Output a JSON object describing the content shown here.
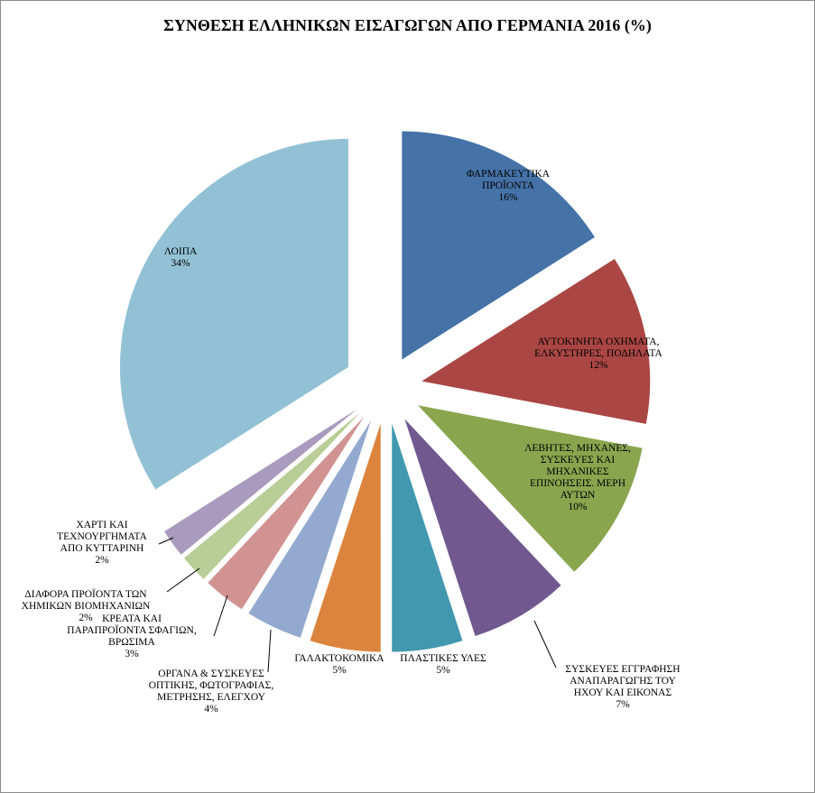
{
  "chart_data": {
    "type": "pie",
    "title": "ΣΥΝΘΕΣΗ ΕΛΛΗΝΙΚΩΝ ΕΙΣΑΓΩΓΩΝ ΑΠΟ ΓΕΡΜΑΝΙΑ 2016 (%)",
    "exploded": true,
    "start_angle_deg": 0,
    "direction": "clockwise",
    "slices": [
      {
        "label": [
          "ΦΑΡΜΑΚΕΥΤΙΚΑ",
          "ΠΡΟΪΟΝΤΑ"
        ],
        "pct_label": "16%",
        "value": 16,
        "color": "#4572A7"
      },
      {
        "label": [
          "ΑΥΤΟΚΙΝΗΤΑ ΟΧΗΜΑΤΑ,",
          "ΕΛΚΥΣΤΗΡΕΣ, ΠΟΔΗΛΑΤΑ"
        ],
        "pct_label": "12%",
        "value": 12,
        "color": "#AA4643"
      },
      {
        "label": [
          "ΛΕΒΗΤΕΣ, ΜΗΧΑΝΕΣ,",
          "ΣΥΣΚΕΥΕΣ ΚΑΙ",
          "ΜΗΧΑΝΙΚΕΣ",
          "ΕΠΙΝΟΗΣΕΙΣ. ΜΕΡΗ",
          "ΑΥΤΩΝ"
        ],
        "pct_label": "10%",
        "value": 10,
        "color": "#89A54E"
      },
      {
        "label": [
          "ΣΥΣΚΕΥΕΣ ΕΓΓΡΑΦΗΣΗ",
          "ΑΝΑΠΑΡΑΓΩΓΗΣ ΤΟΥ",
          "ΗΧΟΥ ΚΑΙ ΕΙΚΟΝΑΣ"
        ],
        "pct_label": "7%",
        "value": 7,
        "color": "#71588F"
      },
      {
        "label": [
          "ΠΛΑΣΤΙΚΕΣ ΥΛΕΣ"
        ],
        "pct_label": "5%",
        "value": 5,
        "color": "#4198AF"
      },
      {
        "label": [
          "ΓΑΛΑΚΤΟΚΟΜΙΚΑ"
        ],
        "pct_label": "5%",
        "value": 5,
        "color": "#DB843D"
      },
      {
        "label": [
          "ΟΡΓΑΝΑ & ΣΥΣΚΕΥΕΣ",
          "ΟΠΤΙΚΗΣ, ΦΩΤΟΓΡΑΦΙΑΣ,",
          "ΜΕΤΡΗΣΗΣ, ΕΛΕΓΧΟΥ"
        ],
        "pct_label": "4%",
        "value": 4,
        "color": "#93A9CF"
      },
      {
        "label": [
          "ΚΡΕΑΤΑ ΚΑΙ",
          "ΠΑΡΑΠΡΟΪΟΝΤΑ ΣΦΑΓΙΩΝ,",
          "ΒΡΩΣΙΜΑ"
        ],
        "pct_label": "3%",
        "value": 3,
        "color": "#D19392"
      },
      {
        "label": [
          "ΔΙΑΦΟΡΑ ΠΡΟΪΟΝΤΑ ΤΩΝ",
          "ΧΗΜΙΚΩΝ ΒΙΟΜΗΧΑΝΙΩΝ"
        ],
        "pct_label": "2%",
        "value": 2,
        "color": "#B9CD96"
      },
      {
        "label": [
          "ΧΑΡΤΙ ΚΑΙ",
          "ΤΕΧΝΟΥΡΓΗΜΑΤΑ",
          "ΑΠΟ ΚΥΤΤΑΡΙΝΗ"
        ],
        "pct_label": "2%",
        "value": 2,
        "color": "#A99BBD"
      },
      {
        "label": [
          "ΛΟΙΠΑ"
        ],
        "pct_label": "34%",
        "value": 34,
        "color": "#92C1D5"
      }
    ]
  }
}
